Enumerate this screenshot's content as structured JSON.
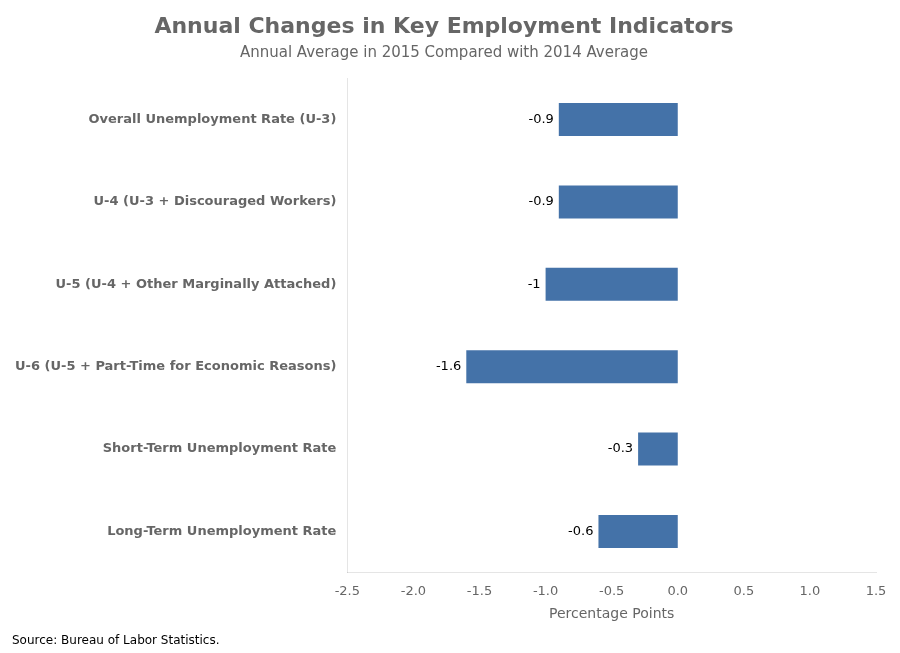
{
  "chart_data": {
    "type": "bar",
    "orientation": "horizontal",
    "title": "Annual Changes in Key Employment Indicators",
    "subtitle": "Annual Average in 2015 Compared with 2014 Average",
    "source": "Source: Bureau of Labor Statistics.",
    "categories": [
      "Long-Term Unemployment Rate",
      "Short-Term Unemployment Rate",
      "U-6 (U-5 + Part-Time for Economic Reasons)",
      "U-5 (U-4 + Other Marginally Attached)",
      "U-4 (U-3 + Discouraged Workers)",
      "Overall Unemployment Rate (U-3)"
    ],
    "values": [
      -0.6,
      -0.3,
      -1.6,
      -1.0,
      -0.9,
      -0.9
    ],
    "color": "#4472a8",
    "xlabel": "Percentage Points",
    "xlim": [
      -2.5,
      1.5
    ],
    "xticks": [
      -2.5,
      {
        "value": -2.0,
        "label": "-2.0"
      },
      -1.5,
      {
        "value": -1.0,
        "label": "-1.0"
      },
      -0.5,
      {
        "value": 0.0,
        "label": "0.0"
      },
      0.5,
      {
        "value": 1.0,
        "label": "1.0"
      },
      1.5
    ],
    "grid": false,
    "data_labels": true
  }
}
